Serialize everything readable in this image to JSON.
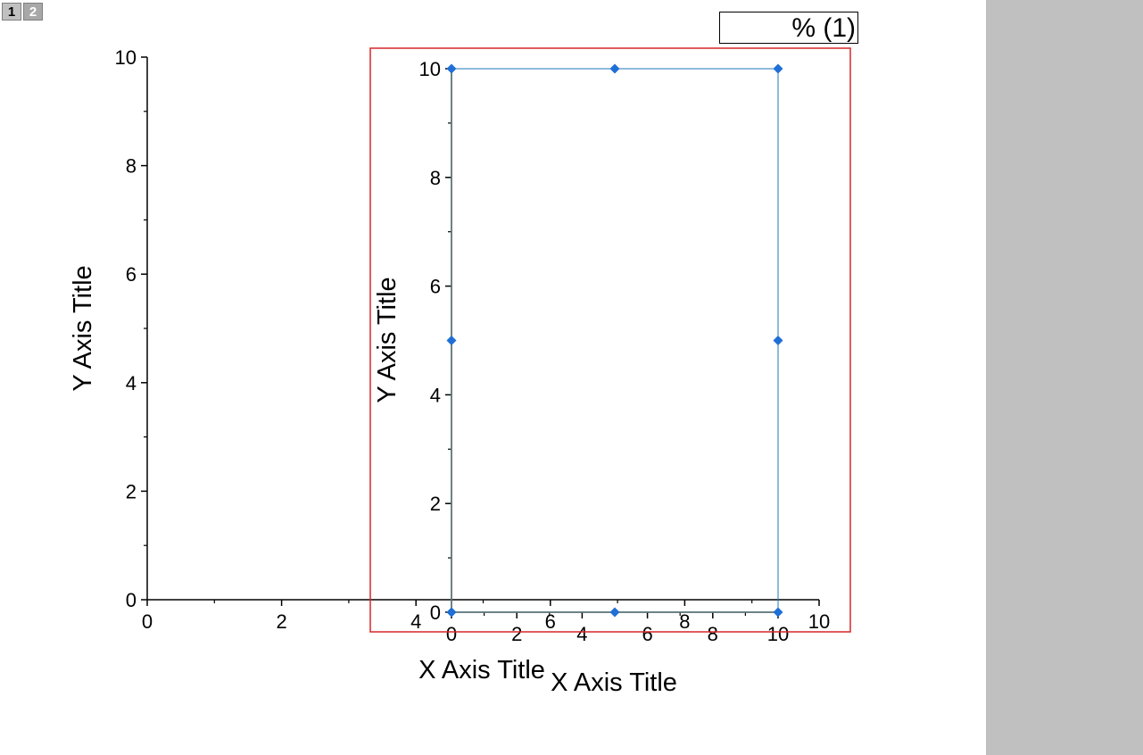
{
  "layer_tabs": [
    {
      "label": "1",
      "active": true
    },
    {
      "label": "2",
      "active": false
    }
  ],
  "legend": {
    "text": "% (1)"
  },
  "colors": {
    "selection": "#d62728",
    "series_line": "#1f77b4",
    "series_marker": "#1f6fd6",
    "x_zero_line": "#f0a030",
    "panel_bg": "#c0c0c0"
  },
  "chart_data": [
    {
      "type": "line",
      "layer": "1",
      "xlabel": "X Axis Title",
      "ylabel": "Y Axis Title",
      "xlim": [
        0,
        10
      ],
      "ylim": [
        0,
        10
      ],
      "x_ticks": [
        "0",
        "2",
        "4",
        "6",
        "8",
        "10"
      ],
      "y_ticks": [
        "0",
        "2",
        "4",
        "6",
        "8",
        "10"
      ],
      "series": [],
      "grid": false
    },
    {
      "type": "line",
      "layer": "2",
      "selected": true,
      "xlabel": "X Axis Title",
      "ylabel": "Y Axis Title",
      "xlim": [
        0,
        10
      ],
      "ylim": [
        0,
        10
      ],
      "x_ticks": [
        "0",
        "2",
        "4",
        "6",
        "8",
        "10"
      ],
      "y_ticks": [
        "0",
        "2",
        "4",
        "6",
        "8",
        "10"
      ],
      "series": [
        {
          "x": [
            0,
            0,
            0,
            5,
            10,
            10,
            10,
            5,
            0
          ],
          "y": [
            0,
            5,
            10,
            10,
            10,
            5,
            0,
            0,
            0
          ],
          "marker": "diamond"
        }
      ],
      "grid": false
    }
  ]
}
